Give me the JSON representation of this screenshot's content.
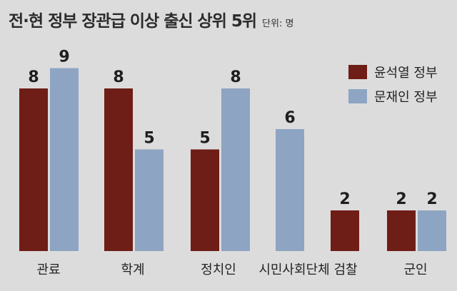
{
  "title": "전·현 정부 장관급 이상 출신 상위 5위",
  "unit_note": "단위: 명",
  "colors": {
    "background": "#dcdcdc",
    "yoon": "#6f1d17",
    "moon": "#8ea4c3"
  },
  "chart_data": {
    "type": "bar",
    "title": "전·현 정부 장관급 이상 출신 상위 5위",
    "xlabel": "",
    "ylabel": "",
    "ylim": [
      0,
      9
    ],
    "categories": [
      "관료",
      "학계",
      "정치인",
      "시민사회단체",
      "검찰",
      "군인"
    ],
    "series": [
      {
        "name": "윤석열 정부",
        "color": "#6f1d17",
        "values": [
          8,
          8,
          5,
          null,
          2,
          2
        ]
      },
      {
        "name": "문재인 정부",
        "color": "#8ea4c3",
        "values": [
          9,
          5,
          8,
          6,
          null,
          2
        ]
      }
    ],
    "legend": "top-right",
    "grid": false
  }
}
